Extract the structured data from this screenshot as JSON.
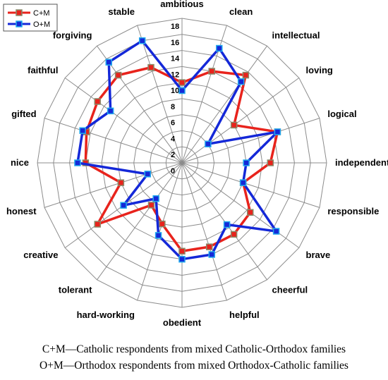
{
  "chart_data": {
    "type": "radar",
    "categories": [
      "ambitious",
      "clean",
      "intellectual",
      "loving",
      "logical",
      "independent",
      "responsible",
      "brave",
      "cheerful",
      "helpful",
      "obedient",
      "hard-working",
      "tolerant",
      "creative",
      "honest",
      "nice",
      "gifted",
      "faithful",
      "forgiving",
      "stable"
    ],
    "ticks": [
      "0",
      "2",
      "4",
      "6",
      "8",
      "10",
      "12",
      "14",
      "16",
      "18"
    ],
    "rlim": [
      0,
      18
    ],
    "grid": true,
    "legend_position": "top-left",
    "series": [
      {
        "name": "C+M",
        "color": "#e8231c",
        "marker_color": "#8a8a6a",
        "values": [
          10,
          12,
          13.5,
          8,
          12.5,
          11,
          8,
          10.5,
          11,
          11,
          11,
          8,
          6.5,
          13,
          8,
          12,
          12.5,
          13,
          13.5,
          12.5
        ]
      },
      {
        "name": "O+M",
        "color": "#1428d8",
        "marker_color": "#22aaee",
        "values": [
          9,
          15,
          12.5,
          4,
          12.5,
          8,
          8,
          14.5,
          9.5,
          12,
          12,
          9.5,
          5.5,
          9,
          4.5,
          13,
          13,
          11,
          15.5,
          16
        ]
      }
    ]
  },
  "captions": [
    "C+M—Catholic respondents from mixed Catholic-Orthodox families",
    "O+M—Orthodox respondents from mixed Orthodox-Catholic families"
  ]
}
